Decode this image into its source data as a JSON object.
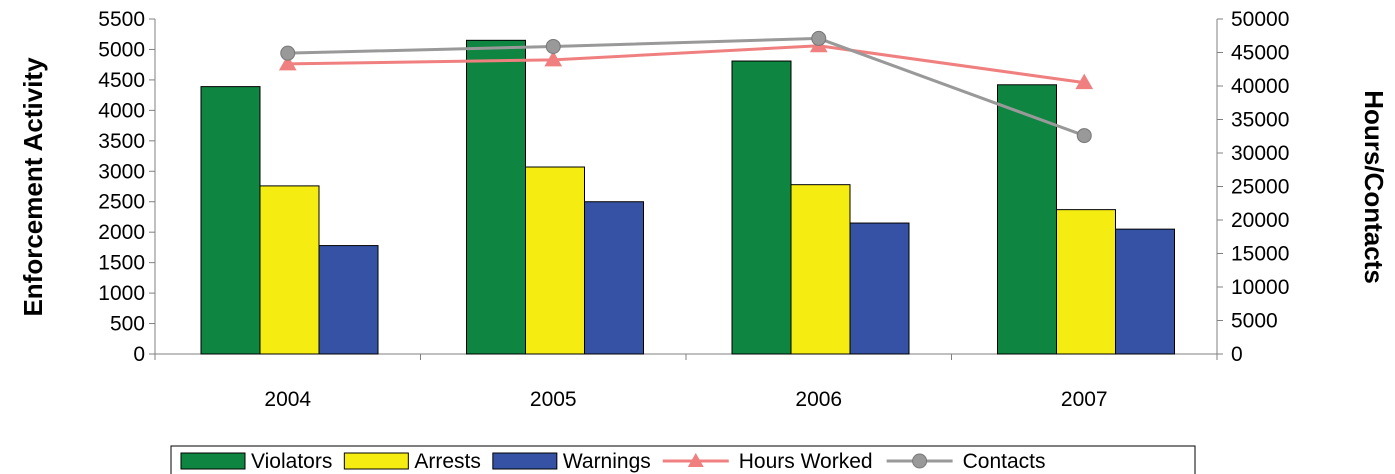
{
  "chart_data": {
    "type": "bar",
    "categories": [
      "2004",
      "2005",
      "2006",
      "2007"
    ],
    "bar_series": [
      {
        "name": "Violators",
        "color": "#0e8540",
        "values": [
          4390,
          5150,
          4810,
          4420
        ]
      },
      {
        "name": "Arrests",
        "color": "#f5ec12",
        "values": [
          2760,
          3070,
          2780,
          2370
        ]
      },
      {
        "name": "Warnings",
        "color": "#3552a4",
        "values": [
          1780,
          2500,
          2150,
          2050
        ]
      }
    ],
    "line_series": [
      {
        "name": "Hours Worked",
        "color": "#f08080",
        "marker": "triangle",
        "values": [
          43300,
          43900,
          46000,
          40500
        ]
      },
      {
        "name": "Contacts",
        "color": "#999999",
        "marker": "circle",
        "values": [
          44900,
          45900,
          47100,
          32600
        ]
      }
    ],
    "ylabel": "Enforcement Activity",
    "y2label": "Hours/Contacts",
    "ylim": [
      0,
      5500
    ],
    "y2lim": [
      0,
      50000
    ],
    "yticks": [
      "0",
      "500",
      "1000",
      "1500",
      "2000",
      "2500",
      "3000",
      "3500",
      "4000",
      "4500",
      "5000",
      "5500"
    ],
    "y2ticks": [
      "0",
      "5000",
      "10000",
      "15000",
      "20000",
      "25000",
      "30000",
      "35000",
      "40000",
      "45000",
      "50000"
    ],
    "legend": [
      "Violators",
      "Arrests",
      "Warnings",
      "Hours Worked",
      "Contacts"
    ],
    "legend_position": "bottom",
    "grid": false
  }
}
